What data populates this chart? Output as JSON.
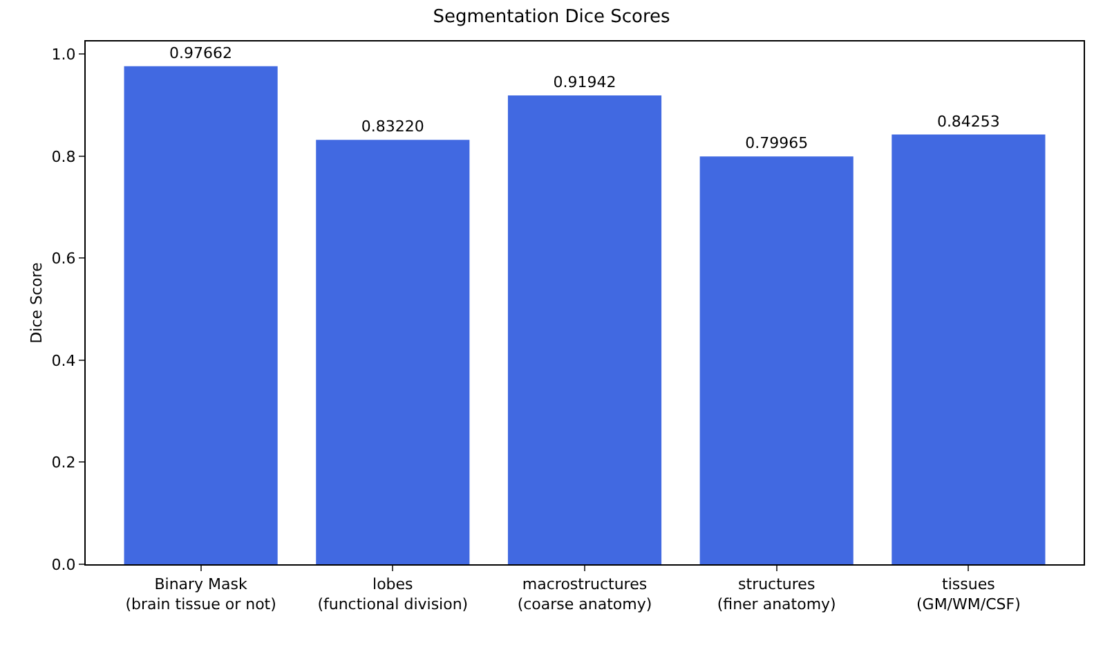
{
  "chart_data": {
    "type": "bar",
    "title": "Segmentation Dice Scores",
    "ylabel": "Dice Score",
    "categories": [
      "Binary Mask\n(brain tissue or not)",
      "lobes\n(functional division)",
      "macrostructures\n(coarse anatomy)",
      "structures\n(finer anatomy)",
      "tissues\n(GM/WM/CSF)"
    ],
    "values": [
      0.97662,
      0.8322,
      0.91942,
      0.79965,
      0.84253
    ],
    "value_labels": [
      "0.97662",
      "0.83220",
      "0.91942",
      "0.79965",
      "0.84253"
    ],
    "color": "#4169e1",
    "ylim": [
      0,
      1.025
    ],
    "yticks": [
      {
        "value": 0,
        "label": "0.0"
      },
      {
        "value": 0.2,
        "label": "0.2"
      },
      {
        "value": 0.4,
        "label": "0.4"
      },
      {
        "value": 0.6,
        "label": "0.6"
      },
      {
        "value": 0.8,
        "label": "0.8"
      },
      {
        "value": 1,
        "label": "1.0"
      }
    ],
    "grid": false
  }
}
